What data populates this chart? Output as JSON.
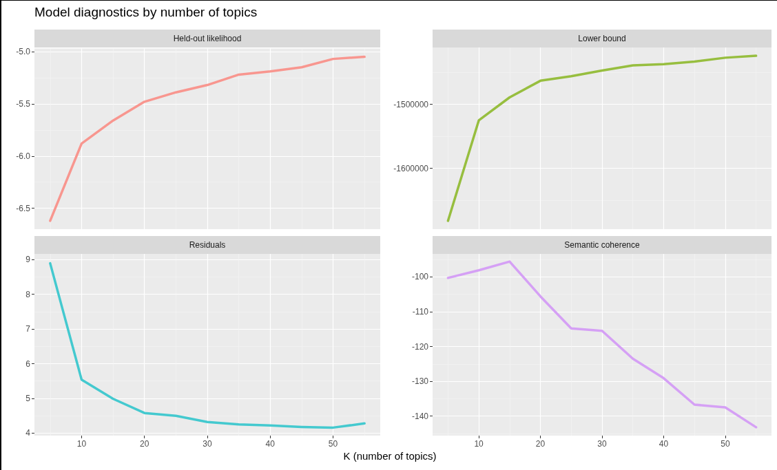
{
  "chart_data": [
    {
      "type": "line",
      "title": "Held-out likelihood",
      "annotations": [
        "Model diagnostics by number of topics"
      ],
      "x": [
        5,
        10,
        15,
        20,
        25,
        30,
        35,
        40,
        45,
        50,
        55
      ],
      "series": [
        {
          "color": "#f8968f",
          "values": [
            -6.62,
            -5.88,
            -5.66,
            -5.48,
            -5.39,
            -5.32,
            -5.22,
            -5.19,
            -5.15,
            -5.07,
            -5.05
          ]
        }
      ],
      "xlim": [
        2.5,
        57.5
      ],
      "xticks": [
        10,
        20,
        30,
        40,
        50
      ],
      "ylim": [
        -6.7,
        -4.97
      ],
      "yticks": [
        -6.5,
        {
          "value": -6,
          "label": "-6.0"
        },
        -5.5,
        {
          "value": -5,
          "label": "-5.0"
        }
      ],
      "grid": true,
      "tick_labels": "y",
      "line_style": "solid"
    },
    {
      "type": "line",
      "title": "Lower bound",
      "x": [
        5,
        10,
        15,
        20,
        25,
        30,
        35,
        40,
        45,
        50,
        55
      ],
      "series": [
        {
          "color": "#97be3f",
          "values": [
            -1682000,
            -1525000,
            -1489000,
            -1463000,
            -1456000,
            -1447000,
            -1439000,
            -1437000,
            -1433000,
            -1427000,
            -1424000
          ]
        }
      ],
      "xlim": [
        2.5,
        57.5
      ],
      "xticks": [
        10,
        20,
        30,
        40,
        50
      ],
      "ylim": [
        -1695000,
        -1411000
      ],
      "yticks": [
        -1600000,
        -1500000
      ],
      "grid": true,
      "tick_labels": "y",
      "line_style": "solid"
    },
    {
      "type": "line",
      "title": "Residuals",
      "xlabel": "K (number of topics)",
      "x": [
        5,
        10,
        15,
        20,
        25,
        30,
        35,
        40,
        45,
        50,
        55
      ],
      "series": [
        {
          "color": "#44c9cf",
          "values": [
            8.89,
            5.54,
            4.99,
            4.58,
            4.5,
            4.32,
            4.25,
            4.22,
            4.18,
            4.16,
            4.28
          ]
        }
      ],
      "xlim": [
        2.5,
        57.5
      ],
      "xticks": [
        10,
        20,
        30,
        40,
        50
      ],
      "ylim": [
        3.93,
        9.16
      ],
      "yticks": [
        4,
        5,
        6,
        7,
        8,
        9
      ],
      "grid": true,
      "line_style": "solid"
    },
    {
      "type": "line",
      "title": "Semantic coherence",
      "x": [
        5,
        10,
        15,
        20,
        25,
        30,
        35,
        40,
        45,
        50,
        55
      ],
      "series": [
        {
          "color": "#d5a0f5",
          "values": [
            -100.3,
            -98.1,
            -95.6,
            -105.6,
            -114.8,
            -115.5,
            -123.5,
            -129.1,
            -136.7,
            -137.5,
            -143.2
          ]
        }
      ],
      "xlim": [
        2.5,
        57.5
      ],
      "xticks": [
        10,
        20,
        30,
        40,
        50
      ],
      "ylim": [
        -145.6,
        -93.4
      ],
      "yticks": [
        -140,
        -130,
        -120,
        -110,
        -100
      ],
      "grid": true,
      "line_style": "solid"
    }
  ]
}
